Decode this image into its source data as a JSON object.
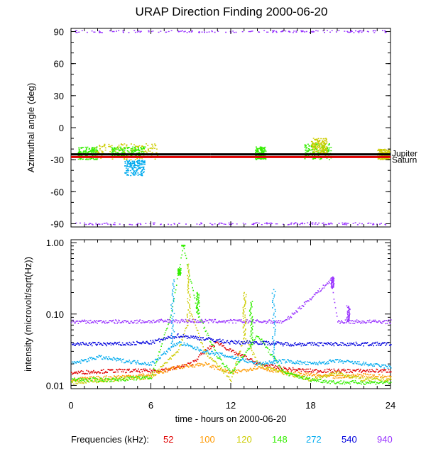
{
  "chart_data": {
    "type": "scatter",
    "title": "URAP Direction Finding  2000-06-20",
    "xlabel": "time - hours on 2000-06-20",
    "xlim": [
      0,
      24
    ],
    "x_ticks": [
      "0",
      "6",
      "12",
      "18",
      "24"
    ],
    "panels": [
      {
        "id": "azimuth",
        "ylabel": "Azimuthal angle (deg)",
        "ylim": [
          -93,
          93
        ],
        "y_ticks": [
          90,
          60,
          30,
          0,
          -30,
          -60,
          -90
        ],
        "y_tick_labels": [
          "90",
          "60",
          "30",
          "0",
          "-30",
          "-60",
          "-90"
        ],
        "reference_lines": [
          {
            "name": "Jupiter",
            "label": "Jupiter",
            "value": -25,
            "color": "#000000"
          },
          {
            "name": "Saturn",
            "label": "Saturn",
            "value": -27.5,
            "color": "#e00000"
          }
        ],
        "clusters": [
          {
            "freq": 940,
            "x": [
              0.3,
              23.7
            ],
            "y": [
              89,
              91
            ]
          },
          {
            "freq": 940,
            "x": [
              0.3,
              23.7
            ],
            "y": [
              -91,
              -89
            ]
          },
          {
            "freq": 148,
            "x": [
              0.5,
              2.0
            ],
            "y": [
              -30,
              -18
            ]
          },
          {
            "freq": 120,
            "x": [
              1.8,
              6.5
            ],
            "y": [
              -30,
              -15
            ]
          },
          {
            "freq": 148,
            "x": [
              3.0,
              5.5
            ],
            "y": [
              -28,
              -18
            ]
          },
          {
            "freq": 272,
            "x": [
              4.0,
              5.5
            ],
            "y": [
              -45,
              -30
            ]
          },
          {
            "freq": 148,
            "x": [
              13.8,
              14.6
            ],
            "y": [
              -30,
              -18
            ]
          },
          {
            "freq": 148,
            "x": [
              17.5,
              19.5
            ],
            "y": [
              -30,
              -15
            ]
          },
          {
            "freq": 120,
            "x": [
              18.0,
              19.2
            ],
            "y": [
              -25,
              -10
            ]
          },
          {
            "freq": 120,
            "x": [
              23.0,
              23.9
            ],
            "y": [
              -30,
              -20
            ]
          }
        ]
      },
      {
        "id": "intensity",
        "ylabel": "intensity (microvolt/sqrt(Hz))",
        "scale": "log",
        "ylim": [
          0.009,
          1.1
        ],
        "y_ticks": [
          1.0,
          0.1,
          0.01
        ],
        "y_tick_labels": [
          "1.00",
          "0.10",
          "0.01"
        ],
        "series": [
          {
            "freq": 52,
            "x": [
              0,
              3,
              6,
              7.5,
              9,
              10,
              11,
              12,
              13,
              14,
              16,
              18,
              20,
              22,
              24
            ],
            "y": [
              0.015,
              0.016,
              0.016,
              0.017,
              0.02,
              0.03,
              0.04,
              0.03,
              0.025,
              0.02,
              0.017,
              0.016,
              0.016,
              0.016,
              0.016
            ]
          },
          {
            "freq": 100,
            "x": [
              0,
              3,
              6,
              8,
              10,
              12,
              14,
              16,
              18,
              20,
              22,
              24
            ],
            "y": [
              0.012,
              0.013,
              0.014,
              0.018,
              0.02,
              0.015,
              0.018,
              0.015,
              0.014,
              0.013,
              0.014,
              0.013
            ]
          },
          {
            "freq": 120,
            "x": [
              0,
              3,
              6,
              8,
              9,
              10,
              12,
              13,
              14,
              16,
              18,
              20,
              22,
              24
            ],
            "y": [
              0.011,
              0.012,
              0.013,
              0.03,
              0.1,
              0.03,
              0.012,
              0.05,
              0.02,
              0.015,
              0.012,
              0.015,
              0.012,
              0.012
            ]
          },
          {
            "freq": 148,
            "x": [
              0,
              3,
              6,
              7.5,
              8.4,
              9.5,
              11,
              12,
              14,
              16,
              18,
              20,
              22,
              24
            ],
            "y": [
              0.012,
              0.012,
              0.013,
              0.1,
              0.9,
              0.1,
              0.025,
              0.015,
              0.05,
              0.015,
              0.012,
              0.011,
              0.011,
              0.011
            ]
          },
          {
            "freq": 272,
            "x": [
              0,
              2,
              4,
              6,
              8,
              10,
              12,
              14,
              16,
              18,
              20,
              22,
              24
            ],
            "y": [
              0.02,
              0.025,
              0.022,
              0.02,
              0.04,
              0.03,
              0.025,
              0.02,
              0.022,
              0.02,
              0.022,
              0.02,
              0.018
            ]
          },
          {
            "freq": 540,
            "x": [
              0,
              4,
              6,
              8,
              10,
              12,
              14,
              16,
              18,
              20,
              22,
              24
            ],
            "y": [
              0.038,
              0.038,
              0.04,
              0.05,
              0.045,
              0.04,
              0.04,
              0.038,
              0.038,
              0.038,
              0.038,
              0.038
            ]
          },
          {
            "freq": 940,
            "x": [
              0,
              4,
              8,
              12,
              16,
              19.5,
              20,
              24
            ],
            "y": [
              0.078,
              0.078,
              0.08,
              0.079,
              0.078,
              0.3,
              0.078,
              0.078
            ]
          }
        ],
        "spikes": [
          {
            "freq": 148,
            "x": 8.4,
            "peak": 0.92
          },
          {
            "freq": 148,
            "x": 8.1,
            "peak": 0.35
          },
          {
            "freq": 272,
            "x": 7.6,
            "peak": 0.3
          },
          {
            "freq": 120,
            "x": 8.8,
            "peak": 0.5
          },
          {
            "freq": 148,
            "x": 9.5,
            "peak": 0.2
          },
          {
            "freq": 120,
            "x": 13.0,
            "peak": 0.2
          },
          {
            "freq": 148,
            "x": 13.5,
            "peak": 0.15
          },
          {
            "freq": 272,
            "x": 15.2,
            "peak": 0.22
          },
          {
            "freq": 940,
            "x": 19.6,
            "peak": 0.33
          },
          {
            "freq": 940,
            "x": 20.8,
            "peak": 0.13
          }
        ]
      }
    ],
    "legend": {
      "label": "Frequencies (kHz):",
      "entries": [
        {
          "freq": 52,
          "label": "52",
          "color": "#e00000"
        },
        {
          "freq": 100,
          "label": "100",
          "color": "#ff9900"
        },
        {
          "freq": 120,
          "label": "120",
          "color": "#cccc00"
        },
        {
          "freq": 148,
          "label": "148",
          "color": "#33ee00"
        },
        {
          "freq": 272,
          "label": "272",
          "color": "#00aaee"
        },
        {
          "freq": 540,
          "label": "540",
          "color": "#0000dd"
        },
        {
          "freq": 940,
          "label": "940",
          "color": "#9933ff"
        }
      ]
    }
  }
}
